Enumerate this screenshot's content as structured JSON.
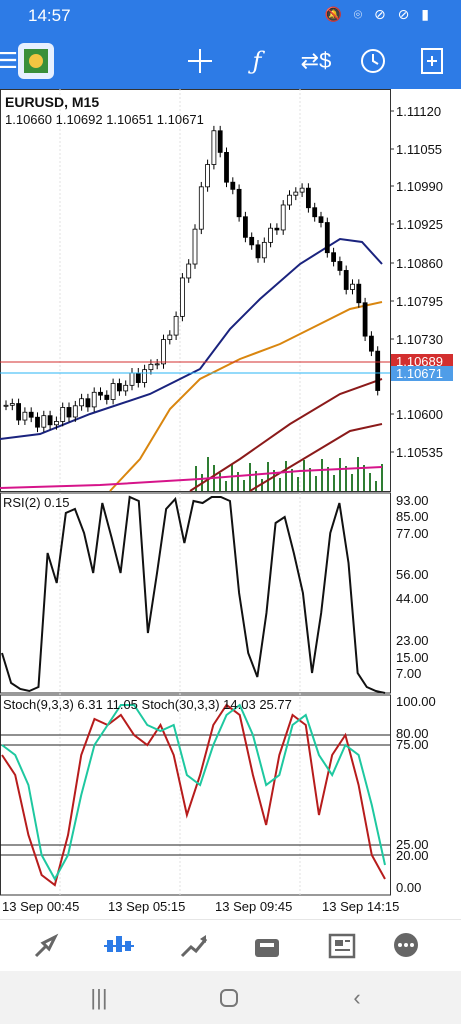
{
  "status_bar": {
    "time": "14:57",
    "icons": [
      "mute-icon",
      "wifi-icon",
      "block-icon",
      "block-icon",
      "battery-icon"
    ]
  },
  "toolbar": {
    "icons": [
      "menu-icon",
      "app-logo",
      "crosshair-icon",
      "function-icon",
      "currency-icon",
      "clock-icon",
      "add-document-icon"
    ]
  },
  "chart": {
    "symbol": "EURUSD, M15",
    "ohlc": "1.10660 1.10692 1.10651 1.10671",
    "price_axis": [
      "1.11120",
      "1.11055",
      "1.10990",
      "1.10925",
      "1.10860",
      "1.10795",
      "1.10730",
      "1.10600",
      "1.10535"
    ],
    "bid_label": "1.10689",
    "ask_label": "1.10671",
    "time_axis": [
      "13 Sep 00:45",
      "13 Sep 05:15",
      "13 Sep 09:45",
      "13 Sep 14:15"
    ],
    "colors": {
      "bull": "#ffffff",
      "bear": "#000000",
      "ma_fast": "#1a237e",
      "ma_mid": "#d9860f",
      "ma_slow": "#8b1a1a",
      "ma_slowest": "#d6148a",
      "volume": "#2e7d32",
      "bid_line": "#d32f2f",
      "ask_line": "#29b6f6",
      "stoch_main": "#b71c1c",
      "stoch_signal": "#1ec8a0"
    }
  },
  "rsi": {
    "label": "RSI(2) 0.15",
    "levels": [
      "93.00",
      "85.00",
      "77.00",
      "56.00",
      "44.00",
      "23.00",
      "15.00",
      "7.00"
    ]
  },
  "stoch": {
    "label": "Stoch(9,3,3) 6.31 11.05 Stoch(30,3,3) 14.03 25.77",
    "levels": [
      "100.00",
      "80.00",
      "75.00",
      "25.00",
      "20.00",
      "0.00"
    ]
  },
  "bottom_nav": [
    "quotes-icon",
    "chart-icon",
    "trade-icon",
    "history-icon",
    "news-icon",
    "messages-icon"
  ],
  "chart_data": [
    {
      "type": "candlestick",
      "title": "EURUSD, M15",
      "ylim": [
        1.105,
        1.1115
      ],
      "x": [
        "13 Sep 00:45",
        "13 Sep 05:15",
        "13 Sep 09:45",
        "13 Sep 14:15"
      ],
      "close_series_approx": [
        1.1064,
        1.1062,
        1.1061,
        1.1063,
        1.1065,
        1.1066,
        1.1068,
        1.107,
        1.1076,
        1.109,
        1.1109,
        1.1098,
        1.1088,
        1.1093,
        1.11,
        1.1095,
        1.1086,
        1.1082,
        1.10671
      ]
    },
    {
      "type": "line",
      "title": "RSI(2) 0.15",
      "ylim": [
        0,
        100
      ]
    },
    {
      "type": "line",
      "title": "Stoch(9,3,3) 6.31 11.05 Stoch(30,3,3) 14.03 25.77",
      "ylim": [
        0,
        100
      ]
    }
  ]
}
